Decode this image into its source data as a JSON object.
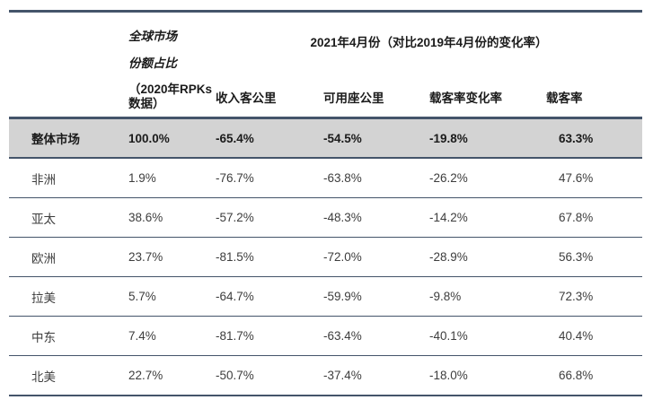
{
  "table": {
    "header": {
      "share_col": {
        "line1": "全球市场",
        "line2": "份额占比",
        "line3": "（2020年RPKs数据）"
      },
      "span_title": "2021年4月份（对比2019年4月份的变化率）",
      "sub_headers": {
        "rpk": "收入客公里",
        "ask": "可用座公里",
        "plf_change": "载客率变化率",
        "plf": "载客率"
      }
    },
    "rows": [
      {
        "region": "整体市场",
        "share": "100.0%",
        "rpk": "-65.4%",
        "ask": "-54.5%",
        "plf_change": "-19.8%",
        "plf": "63.3%"
      },
      {
        "region": "非洲",
        "share": "1.9%",
        "rpk": "-76.7%",
        "ask": "-63.8%",
        "plf_change": "-26.2%",
        "plf": "47.6%"
      },
      {
        "region": "亚太",
        "share": "38.6%",
        "rpk": "-57.2%",
        "ask": "-48.3%",
        "plf_change": "-14.2%",
        "plf": "67.8%"
      },
      {
        "region": "欧洲",
        "share": "23.7%",
        "rpk": "-81.5%",
        "ask": "-72.0%",
        "plf_change": "-28.9%",
        "plf": "56.3%"
      },
      {
        "region": "拉美",
        "share": "5.7%",
        "rpk": "-64.7%",
        "ask": "-59.9%",
        "plf_change": "-9.8%",
        "plf": "72.3%"
      },
      {
        "region": "中东",
        "share": "7.4%",
        "rpk": "-81.7%",
        "ask": "-63.4%",
        "plf_change": "-40.1%",
        "plf": "40.4%"
      },
      {
        "region": "北美",
        "share": "22.7%",
        "rpk": "-50.7%",
        "ask": "-37.4%",
        "plf_change": "-18.0%",
        "plf": "66.8%"
      }
    ],
    "colors": {
      "border_navy": "#44546a",
      "highlight_bg": "#d3d3d3"
    }
  }
}
